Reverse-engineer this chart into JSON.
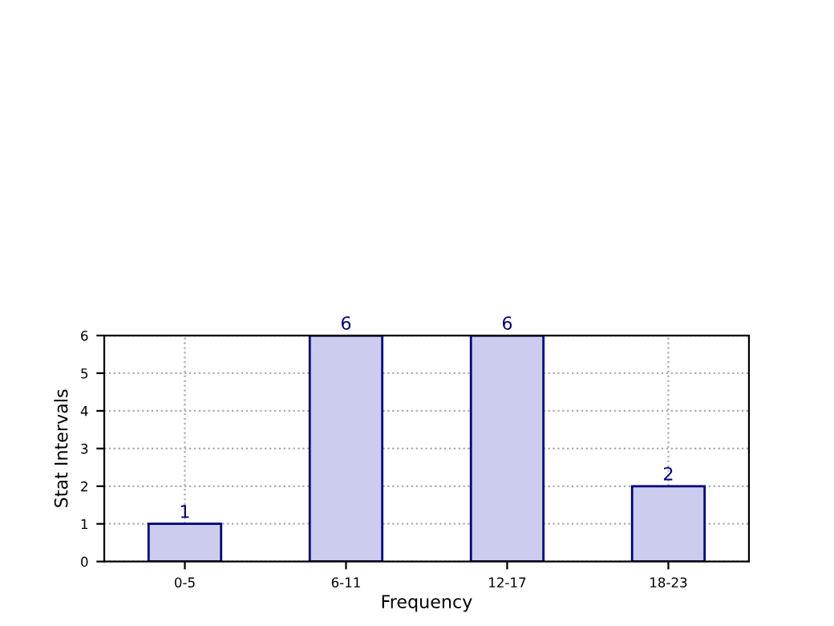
{
  "chart_data": {
    "type": "bar",
    "xlabel": "Frequency",
    "ylabel": "Stat Intervals",
    "categories": [
      "0-5",
      "6-11",
      "12-17",
      "18-23"
    ],
    "values": [
      1,
      6,
      6,
      2
    ],
    "color": "#ccccee",
    "ylim": [
      0,
      6
    ],
    "yticks": [
      0,
      1,
      2,
      3,
      4,
      5,
      6
    ],
    "grid": true,
    "data_labels": true
  }
}
